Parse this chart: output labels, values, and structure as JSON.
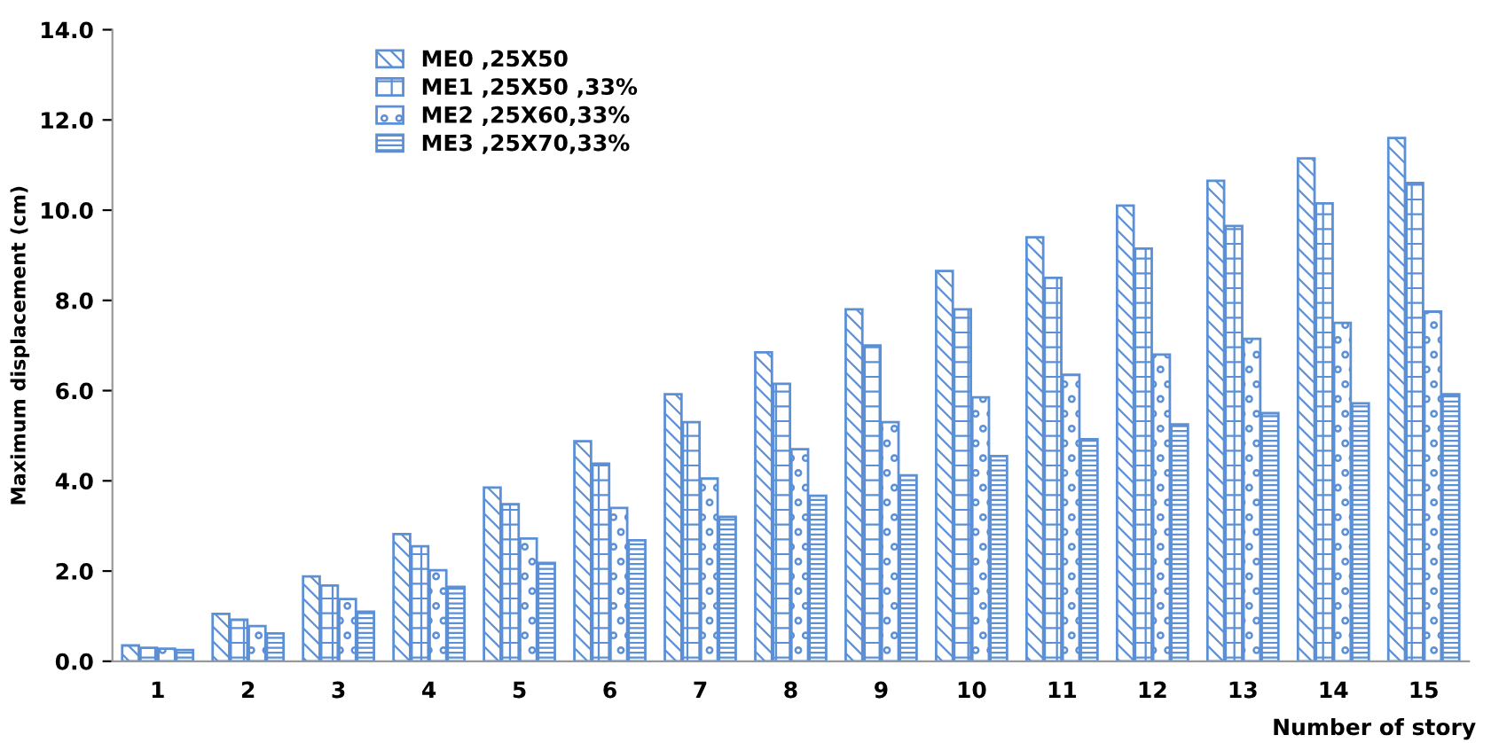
{
  "chart_data": {
    "type": "bar",
    "xlabel": "Number of story",
    "ylabel": "Maximum displacement (cm)",
    "categories": [
      "1",
      "2",
      "3",
      "4",
      "5",
      "6",
      "7",
      "8",
      "9",
      "10",
      "11",
      "12",
      "13",
      "14",
      "15"
    ],
    "series": [
      {
        "name": "ME0 ,25X50",
        "color": "#5b8fd6",
        "values": [
          0.35,
          1.05,
          1.88,
          2.82,
          3.85,
          4.88,
          5.92,
          6.85,
          7.8,
          8.65,
          9.4,
          10.1,
          10.65,
          11.15,
          11.6
        ]
      },
      {
        "name": "ME1 ,25X50 ,33%",
        "color": "#5b8fd6",
        "values": [
          0.3,
          0.92,
          1.68,
          2.55,
          3.48,
          4.38,
          5.3,
          6.15,
          7.0,
          7.8,
          8.5,
          9.15,
          9.65,
          10.15,
          10.6
        ]
      },
      {
        "name": "ME2 ,25X60,33%",
        "color": "#5b8fd6",
        "values": [
          0.28,
          0.78,
          1.38,
          2.02,
          2.72,
          3.4,
          4.05,
          4.7,
          5.3,
          5.85,
          6.35,
          6.8,
          7.15,
          7.5,
          7.75
        ]
      },
      {
        "name": "ME3 ,25X70,33%",
        "color": "#5b8fd6",
        "values": [
          0.25,
          0.62,
          1.1,
          1.65,
          2.18,
          2.68,
          3.2,
          3.67,
          4.12,
          4.55,
          4.92,
          5.25,
          5.5,
          5.72,
          5.92
        ]
      }
    ],
    "ylim": [
      0,
      14
    ],
    "yticks": [
      {
        "value": 0,
        "label": "0.0"
      },
      {
        "value": 2,
        "label": "2.0"
      },
      {
        "value": 4,
        "label": "4.0"
      },
      {
        "value": 6,
        "label": "6.0"
      },
      {
        "value": 8,
        "label": "8.0"
      },
      {
        "value": 10,
        "label": "10.0"
      },
      {
        "value": 12,
        "label": "12.0"
      },
      {
        "value": 14,
        "label": "14.0"
      }
    ],
    "grid": false,
    "legend": "top left"
  }
}
